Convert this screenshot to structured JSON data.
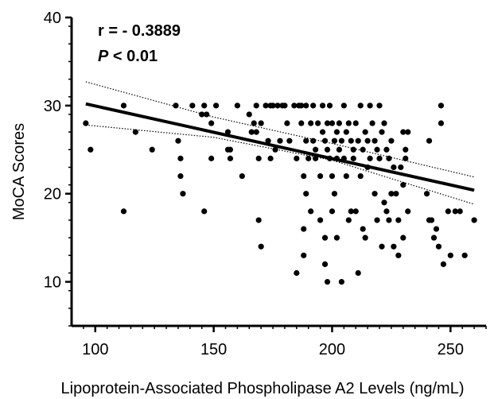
{
  "chart_data": {
    "type": "scatter",
    "title": "",
    "xlabel": "Lipoprotein-Associated Phospholipase A2 Levels (ng/mL)",
    "ylabel": "MoCA Scores",
    "xlim": [
      90,
      265
    ],
    "ylim": [
      5,
      40
    ],
    "xticks": [
      100,
      150,
      200,
      250
    ],
    "yticks": [
      10,
      20,
      30,
      40
    ],
    "grid": false,
    "annotations": {
      "r_line": "r = - 0.3889",
      "p_symbol": "P",
      "p_value": " < 0.01"
    },
    "colors": {
      "points": "#000000",
      "line": "#000000"
    },
    "series": [
      {
        "points": [
          [
            96,
            28
          ],
          [
            98,
            25
          ],
          [
            112,
            30
          ],
          [
            112,
            18
          ],
          [
            117,
            27
          ],
          [
            124,
            25
          ],
          [
            134,
            30
          ],
          [
            135,
            26
          ],
          [
            136,
            22
          ],
          [
            136,
            24
          ],
          [
            141,
            30
          ],
          [
            137,
            20
          ],
          [
            145,
            29
          ],
          [
            146,
            30
          ],
          [
            147,
            29
          ],
          [
            146,
            18
          ],
          [
            149,
            28
          ],
          [
            149,
            24
          ],
          [
            151,
            30
          ],
          [
            156,
            27
          ],
          [
            156,
            25
          ],
          [
            157,
            25
          ],
          [
            157,
            24
          ],
          [
            160,
            30
          ],
          [
            162,
            22
          ],
          [
            165,
            29
          ],
          [
            166,
            27
          ],
          [
            167,
            28
          ],
          [
            168,
            30
          ],
          [
            168,
            27
          ],
          [
            169,
            24
          ],
          [
            169,
            17
          ],
          [
            170,
            14
          ],
          [
            170,
            28
          ],
          [
            172,
            30
          ],
          [
            173,
            26
          ],
          [
            174,
            30
          ],
          [
            174,
            24
          ],
          [
            175,
            30
          ],
          [
            176,
            25
          ],
          [
            177,
            30
          ],
          [
            178,
            26
          ],
          [
            179,
            30
          ],
          [
            180,
            30
          ],
          [
            181,
            28
          ],
          [
            182,
            26
          ],
          [
            184,
            30
          ],
          [
            185,
            24
          ],
          [
            185,
            11
          ],
          [
            186,
            30
          ],
          [
            187,
            30
          ],
          [
            187,
            28
          ],
          [
            188,
            16
          ],
          [
            188,
            22
          ],
          [
            188,
            13
          ],
          [
            189,
            26
          ],
          [
            189,
            30
          ],
          [
            189,
            20
          ],
          [
            190,
            24
          ],
          [
            191,
            28
          ],
          [
            191,
            18
          ],
          [
            192,
            30
          ],
          [
            192,
            26
          ],
          [
            193,
            25
          ],
          [
            193,
            24
          ],
          [
            194,
            28
          ],
          [
            195,
            22
          ],
          [
            195,
            17
          ],
          [
            196,
            30
          ],
          [
            196,
            27
          ],
          [
            197,
            26
          ],
          [
            197,
            15
          ],
          [
            197,
            12
          ],
          [
            198,
            28
          ],
          [
            198,
            25
          ],
          [
            198,
            10
          ],
          [
            199,
            30
          ],
          [
            199,
            24
          ],
          [
            200,
            28
          ],
          [
            200,
            22
          ],
          [
            200,
            18
          ],
          [
            201,
            26
          ],
          [
            201,
            20
          ],
          [
            202,
            27
          ],
          [
            202,
            24
          ],
          [
            202,
            15
          ],
          [
            203,
            28
          ],
          [
            203,
            25
          ],
          [
            204,
            26
          ],
          [
            204,
            10
          ],
          [
            205,
            30
          ],
          [
            205,
            24
          ],
          [
            206,
            27
          ],
          [
            206,
            22
          ],
          [
            207,
            28
          ],
          [
            207,
            17
          ],
          [
            208,
            26
          ],
          [
            208,
            18
          ],
          [
            209,
            25
          ],
          [
            209,
            24
          ],
          [
            210,
            28
          ],
          [
            210,
            18
          ],
          [
            211,
            26
          ],
          [
            211,
            11
          ],
          [
            212,
            30
          ],
          [
            212,
            22
          ],
          [
            213,
            25
          ],
          [
            213,
            16
          ],
          [
            214,
            27
          ],
          [
            214,
            15
          ],
          [
            215,
            26
          ],
          [
            215,
            23
          ],
          [
            216,
            30
          ],
          [
            216,
            24
          ],
          [
            217,
            28
          ],
          [
            218,
            26
          ],
          [
            218,
            20
          ],
          [
            219,
            25
          ],
          [
            219,
            17
          ],
          [
            220,
            30
          ],
          [
            220,
            24
          ],
          [
            221,
            27
          ],
          [
            221,
            14
          ],
          [
            222,
            28
          ],
          [
            222,
            19
          ],
          [
            223,
            25
          ],
          [
            223,
            18
          ],
          [
            224,
            24
          ],
          [
            224,
            17
          ],
          [
            225,
            26
          ],
          [
            225,
            20
          ],
          [
            226,
            23
          ],
          [
            226,
            14
          ],
          [
            227,
            20
          ],
          [
            228,
            17
          ],
          [
            228,
            13
          ],
          [
            229,
            23
          ],
          [
            230,
            27
          ],
          [
            230,
            21
          ],
          [
            230,
            15
          ],
          [
            231,
            25
          ],
          [
            231,
            24
          ],
          [
            232,
            27
          ],
          [
            232,
            18
          ],
          [
            241,
            26
          ],
          [
            240,
            20
          ],
          [
            241,
            17
          ],
          [
            242,
            17
          ],
          [
            243,
            15
          ],
          [
            244,
            16
          ],
          [
            245,
            14
          ],
          [
            246,
            30
          ],
          [
            246,
            28
          ],
          [
            247,
            12
          ],
          [
            249,
            18
          ],
          [
            250,
            13
          ],
          [
            252,
            18
          ],
          [
            254,
            18
          ],
          [
            256,
            13
          ],
          [
            260,
            17
          ]
        ]
      }
    ],
    "regression": {
      "x": [
        96,
        260
      ],
      "y": [
        30.2,
        20.4
      ]
    },
    "ci_upper": {
      "x": [
        96,
        150,
        200,
        260
      ],
      "y": [
        32.7,
        28.7,
        25.7,
        21.9
      ]
    },
    "ci_lower": {
      "x": [
        96,
        150,
        200,
        260
      ],
      "y": [
        27.8,
        26.4,
        23.8,
        18.8
      ]
    }
  }
}
